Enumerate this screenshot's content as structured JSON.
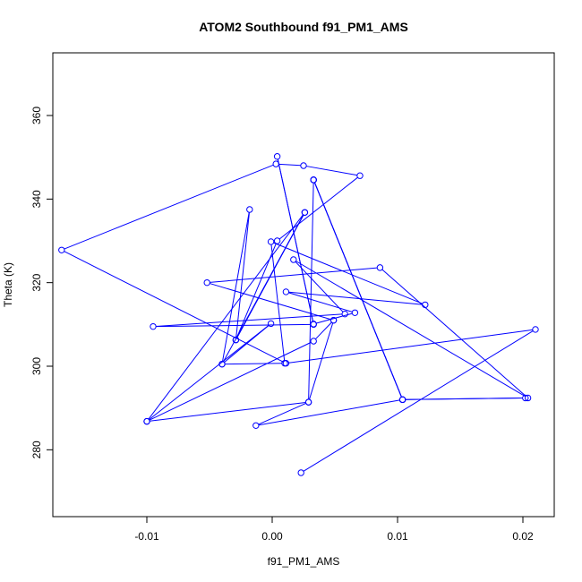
{
  "chart_data": {
    "type": "line",
    "title": "ATOM2 Southbound f91_PM1_AMS",
    "xlabel": "f91_PM1_AMS",
    "ylabel": "Theta (K)",
    "xlim": [
      -0.0175,
      0.0225
    ],
    "ylim": [
      264,
      375
    ],
    "xticks": [
      -0.01,
      0.0,
      0.01,
      0.02
    ],
    "xtick_labels": [
      "-0.01",
      "0.00",
      "0.01",
      "0.02"
    ],
    "yticks": [
      280,
      300,
      320,
      340,
      360
    ],
    "ytick_labels": [
      "280",
      "300",
      "320",
      "340",
      "360"
    ],
    "grid": false,
    "series": [
      {
        "color": "#0000ff",
        "marker": "open-circle",
        "points": [
          {
            "x": 0.0023,
            "y": 274.5
          },
          {
            "x": 0.021,
            "y": 308.8
          },
          {
            "x": 0.0011,
            "y": 300.7
          },
          {
            "x": -0.0168,
            "y": 327.8
          },
          {
            "x": 0.0003,
            "y": 348.4
          },
          {
            "x": 0.0025,
            "y": 348.0
          },
          {
            "x": 0.007,
            "y": 345.6
          },
          {
            "x": 0.0004,
            "y": 330.0
          },
          {
            "x": -0.0029,
            "y": 306.3
          },
          {
            "x": 0.0026,
            "y": 336.8
          },
          {
            "x": -0.0029,
            "y": 306.3
          },
          {
            "x": -0.0018,
            "y": 337.5
          },
          {
            "x": -0.004,
            "y": 300.5
          },
          {
            "x": 0.001,
            "y": 300.7
          },
          {
            "x": -0.0001,
            "y": 329.8
          },
          {
            "x": 0.0122,
            "y": 314.7
          },
          {
            "x": 0.0011,
            "y": 317.8
          },
          {
            "x": 0.0066,
            "y": 312.8
          },
          {
            "x": 0.0033,
            "y": 310.1
          },
          {
            "x": 0.0004,
            "y": 350.2
          },
          {
            "x": 0.0033,
            "y": 310.0
          },
          {
            "x": -0.0095,
            "y": 309.5
          },
          {
            "x": 0.0058,
            "y": 312.5
          },
          {
            "x": 0.0017,
            "y": 325.5
          },
          {
            "x": 0.0204,
            "y": 292.4
          },
          {
            "x": 0.0086,
            "y": 323.6
          },
          {
            "x": -0.0052,
            "y": 320.0
          },
          {
            "x": 0.0049,
            "y": 311.0
          },
          {
            "x": 0.0029,
            "y": 291.4
          },
          {
            "x": -0.0013,
            "y": 285.8
          },
          {
            "x": 0.0104,
            "y": 292.0
          },
          {
            "x": 0.0033,
            "y": 344.6
          },
          {
            "x": 0.0033,
            "y": 344.6
          },
          {
            "x": 0.0104,
            "y": 292.0
          },
          {
            "x": 0.0202,
            "y": 292.4
          },
          {
            "x": 0.0104,
            "y": 292.0
          },
          {
            "x": 0.0033,
            "y": 344.6
          },
          {
            "x": 0.0029,
            "y": 291.4
          },
          {
            "x": -0.01,
            "y": 286.8
          },
          {
            "x": -0.0001,
            "y": 310.2
          },
          {
            "x": -0.004,
            "y": 300.5
          },
          {
            "x": 0.0026,
            "y": 336.8
          },
          {
            "x": -0.01,
            "y": 286.8
          },
          {
            "x": 0.0033,
            "y": 306.0
          },
          {
            "x": 0.0049,
            "y": 311.0
          }
        ]
      }
    ]
  }
}
